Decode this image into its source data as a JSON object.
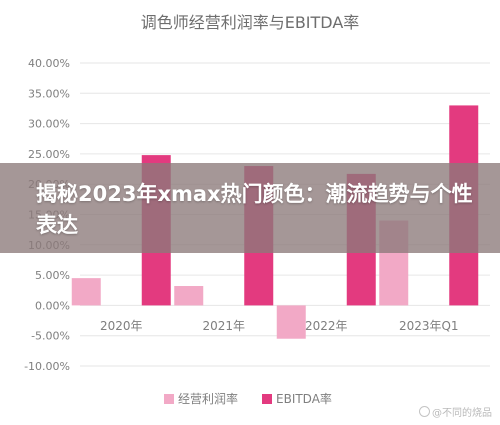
{
  "chart_data": {
    "type": "bar",
    "title": "调色师经营利润率与EBITDA率",
    "categories": [
      "2020年",
      "2021年",
      "2022年",
      "2023年Q1"
    ],
    "series": [
      {
        "name": "经营利润率",
        "values": [
          4.5,
          3.2,
          -5.5,
          14.0
        ]
      },
      {
        "name": "EBITDA率",
        "values": [
          24.8,
          23.0,
          21.7,
          33.0
        ]
      }
    ],
    "ylim": [
      -10,
      40
    ],
    "yticks": [
      -10,
      -5,
      0,
      5,
      10,
      15,
      20,
      25,
      30,
      35,
      40
    ],
    "ytick_labels": [
      "-10.00%",
      "-5.00%",
      "0.00%",
      "5.00%",
      "10.00%",
      "15.00%",
      "20.00%",
      "25.00%",
      "30.00%",
      "35.00%",
      "40.00%"
    ],
    "xlabel": "",
    "ylabel": "",
    "grid": true,
    "legend": "bottom",
    "colors": {
      "series_0": "#f2a9c6",
      "series_1": "#e33a7f",
      "grid": "#e6e6e6",
      "tick_text": "#7f7f7f",
      "title_text": "#6e6e6e"
    }
  },
  "banner": {
    "text": "揭秘2023年xmax热门颜色：潮流趋势与个性表达"
  },
  "watermark": {
    "text": "@不同的烧品"
  }
}
